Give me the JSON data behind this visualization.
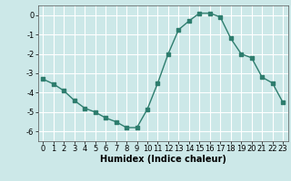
{
  "x": [
    0,
    1,
    2,
    3,
    4,
    5,
    6,
    7,
    8,
    9,
    10,
    11,
    12,
    13,
    14,
    15,
    16,
    17,
    18,
    19,
    20,
    21,
    22,
    23
  ],
  "y": [
    -3.3,
    -3.55,
    -3.9,
    -4.4,
    -4.8,
    -5.0,
    -5.3,
    -5.5,
    -5.8,
    -5.8,
    -4.85,
    -3.5,
    -2.0,
    -0.75,
    -0.3,
    0.1,
    0.1,
    -0.1,
    -1.2,
    -2.0,
    -2.2,
    -3.2,
    -3.5,
    -4.5
  ],
  "line_color": "#2e7d6e",
  "marker": "s",
  "marker_size": 2.2,
  "line_width": 1.0,
  "bg_color": "#cce8e8",
  "grid_color": "#b0d4d4",
  "xlabel": "Humidex (Indice chaleur)",
  "xlabel_fontsize": 7,
  "xlim": [
    -0.5,
    23.5
  ],
  "ylim": [
    -6.5,
    0.5
  ],
  "yticks": [
    0,
    -1,
    -2,
    -3,
    -4,
    -5,
    -6
  ],
  "xtick_labels": [
    "0",
    "1",
    "2",
    "3",
    "4",
    "5",
    "6",
    "7",
    "8",
    "9",
    "10",
    "11",
    "12",
    "13",
    "14",
    "15",
    "16",
    "17",
    "18",
    "19",
    "20",
    "21",
    "22",
    "23"
  ],
  "tick_fontsize": 6.0
}
